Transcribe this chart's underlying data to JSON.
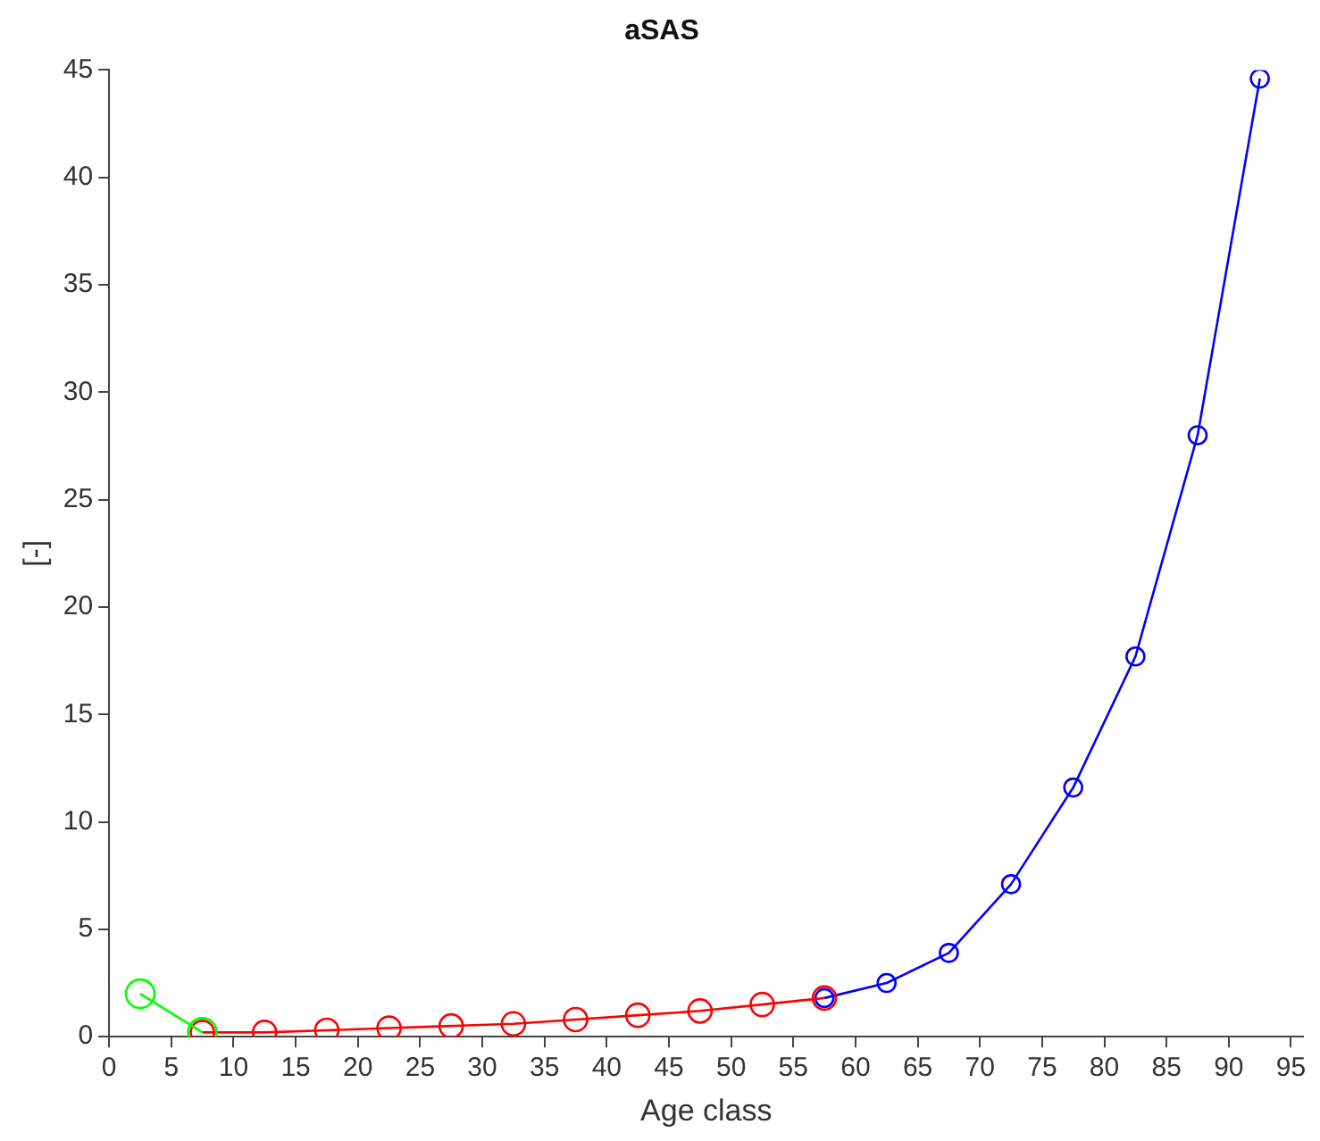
{
  "chart_data": {
    "type": "line",
    "title": "aSAS",
    "xlabel": "Age class",
    "ylabel": "[-]",
    "xlim": [
      0,
      96
    ],
    "xticks": [
      0,
      5,
      10,
      15,
      20,
      25,
      30,
      35,
      40,
      45,
      50,
      55,
      60,
      65,
      70,
      75,
      80,
      85,
      90,
      95
    ],
    "ylim": [
      0,
      45
    ],
    "yticks": [
      0,
      5,
      10,
      15,
      20,
      25,
      30,
      35,
      40,
      45
    ],
    "grid": false,
    "legend": false,
    "marker": "circle",
    "line_style": "solid",
    "series": [
      {
        "color": "#00ff00",
        "x": [
          2.5,
          7.5
        ],
        "values": [
          2.0,
          0.2
        ]
      },
      {
        "color": "#ff0000",
        "x": [
          7.5,
          12.5,
          17.5,
          22.5,
          27.5,
          32.5,
          37.5,
          42.5,
          47.5,
          52.5,
          57.5
        ],
        "values": [
          0.2,
          0.2,
          0.3,
          0.4,
          0.5,
          0.6,
          0.8,
          1.0,
          1.2,
          1.5,
          1.8
        ]
      },
      {
        "color": "#0000ff",
        "x": [
          57.5,
          62.5,
          67.5,
          72.5,
          77.5,
          82.5,
          87.5,
          92.5
        ],
        "values": [
          1.8,
          2.5,
          3.9,
          7.1,
          11.6,
          17.7,
          28.0,
          44.6
        ]
      }
    ]
  }
}
